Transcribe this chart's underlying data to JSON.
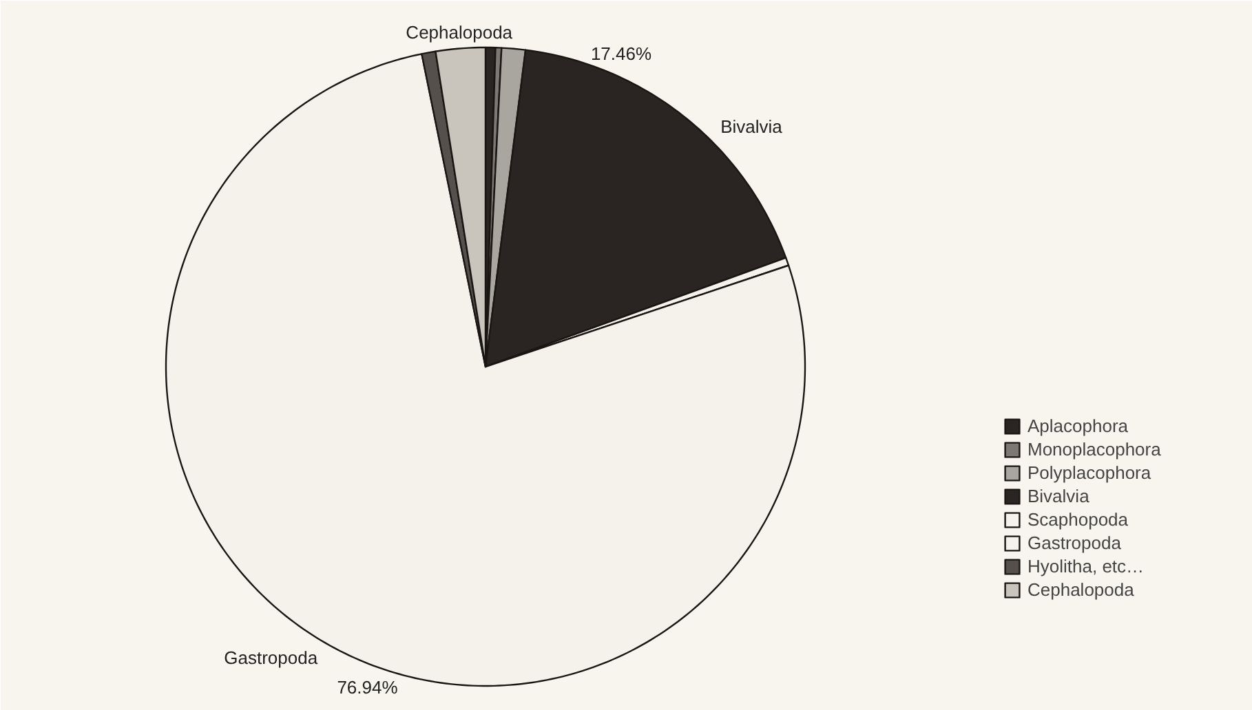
{
  "chart_data": {
    "type": "pie",
    "categories": [
      "Aplacophora",
      "Monoplacophora",
      "Polyplacophora",
      "Bivalvia",
      "Scaphopoda",
      "Gastropoda",
      "Hyolitha, etc…",
      "Cephalopoda"
    ],
    "values": [
      0.5,
      0.3,
      1.2,
      17.46,
      0.4,
      76.94,
      0.7,
      2.5
    ],
    "colors": [
      "#2a2522",
      "#7d7873",
      "#a9a59f",
      "#2a2522",
      "#f4f2ea",
      "#f4f2ea",
      "#55504c",
      "#c9c5bd"
    ],
    "value_labels": [
      null,
      null,
      null,
      "17.46%",
      null,
      "76.94%",
      null,
      null
    ],
    "annotations": [
      {
        "text": "Bivalvia",
        "x": "Bivalvia"
      },
      {
        "text": "Gastropoda",
        "x": "Gastropoda"
      },
      {
        "text": "Cephalopoda",
        "x": "Cephalopoda"
      }
    ],
    "legend": "right"
  }
}
